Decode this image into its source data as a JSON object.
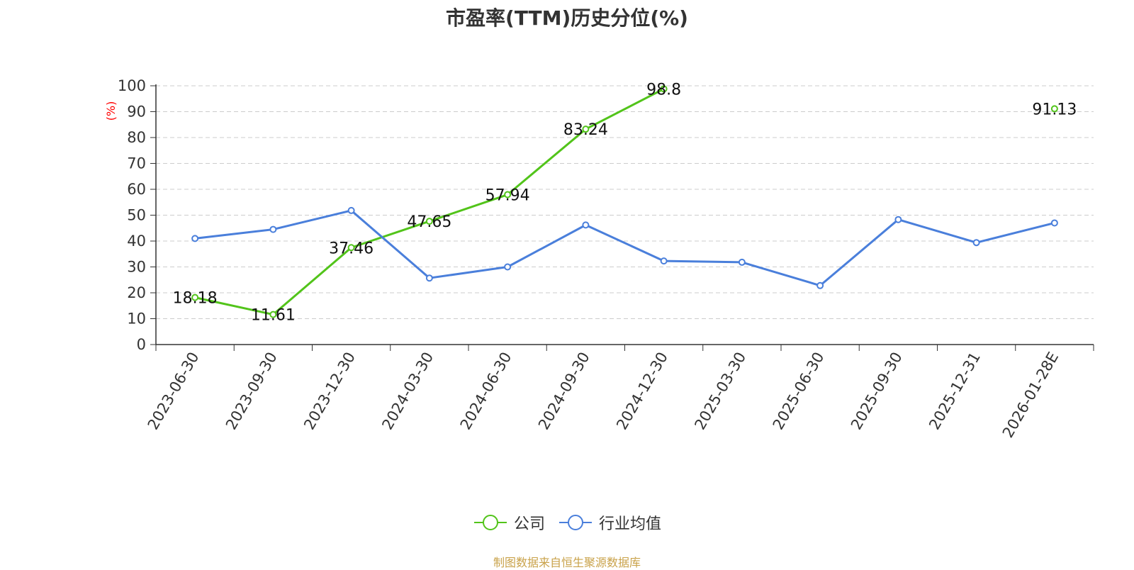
{
  "chart_data": {
    "type": "line",
    "title": "市盈率(TTM)历史分位(%)",
    "ylabel": "(%)",
    "xlabel": "",
    "categories": [
      "2023-06-30",
      "2023-09-30",
      "2023-12-30",
      "2024-03-30",
      "2024-06-30",
      "2024-09-30",
      "2024-12-30",
      "2025-03-30",
      "2025-06-30",
      "2025-09-30",
      "2025-12-31",
      "2026-01-28E"
    ],
    "ylim": [
      0,
      100
    ],
    "yticks": [
      0,
      10,
      20,
      30,
      40,
      50,
      60,
      70,
      80,
      90,
      100
    ],
    "grid": true,
    "legend_position": "bottom",
    "series": [
      {
        "name": "公司",
        "color": "#52c41a",
        "values": [
          18.18,
          11.61,
          37.46,
          47.65,
          57.94,
          83.24,
          98.8,
          null,
          null,
          null,
          null,
          91.13
        ],
        "labels": [
          "18.18",
          "11.61",
          "37.46",
          "47.65",
          "57.94",
          "83.24",
          "98.8",
          null,
          null,
          null,
          null,
          "91.13"
        ]
      },
      {
        "name": "行业均值",
        "color": "#4a7fdb",
        "values": [
          41,
          44.5,
          51.8,
          25.7,
          30,
          46.2,
          32.3,
          31.8,
          22.8,
          48.3,
          39.4,
          47
        ]
      }
    ]
  },
  "source": "制图数据来自恒生聚源数据库"
}
